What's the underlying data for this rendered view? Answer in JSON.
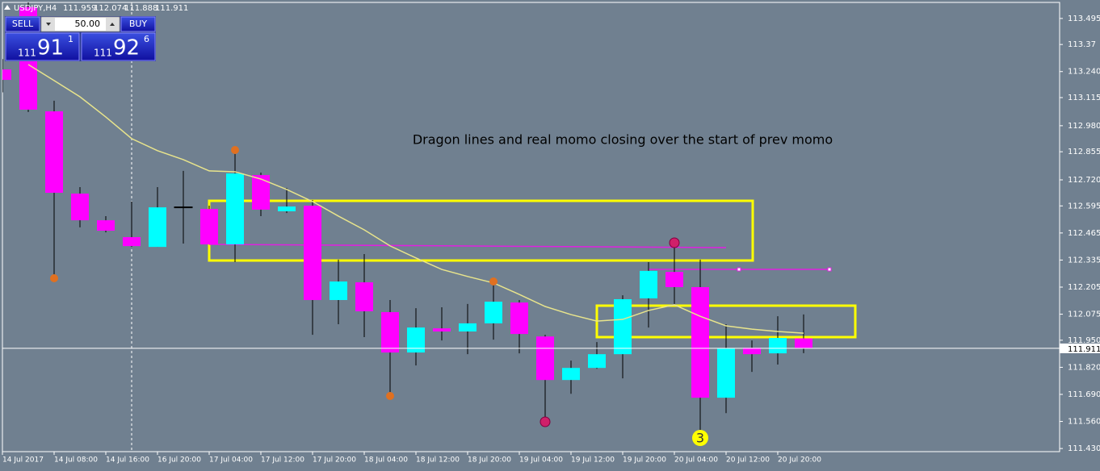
{
  "chart_data": {
    "type": "candlestick",
    "symbol": "USDJPY,H4",
    "annotations": [
      "Dragon lines and real momo closing over the start of prev momo",
      "3"
    ],
    "categories": [
      "14 Jul 2017",
      null,
      "14 Jul 08:00",
      null,
      "14 Jul 16:00",
      null,
      "16 Jul 20:00",
      null,
      "17 Jul 04:00",
      null,
      "17 Jul 12:00",
      null,
      "17 Jul 20:00",
      null,
      "18 Jul 04:00",
      null,
      "18 Jul 12:00",
      null,
      "18 Jul 20:00",
      null,
      "19 Jul 04:00",
      null,
      "19 Jul 12:00",
      null,
      "19 Jul 20:00",
      null,
      "20 Jul 04:00",
      null,
      "20 Jul 12:00",
      null,
      "20 Jul 20:00",
      null
    ],
    "open": [
      113.25,
      113.55,
      113.049,
      112.654,
      112.526,
      112.445,
      112.398,
      112.588,
      112.58,
      112.41,
      112.743,
      112.569,
      112.596,
      112.143,
      112.228,
      112.085,
      111.891,
      112.007,
      111.992,
      112.031,
      112.131,
      111.968,
      111.759,
      111.817,
      111.883,
      112.151,
      112.278,
      112.205,
      111.674,
      111.914,
      111.887,
      111.959
    ],
    "high": [
      113.3,
      113.6,
      113.1,
      112.685,
      112.546,
      112.616,
      112.685,
      112.763,
      112.596,
      112.848,
      112.755,
      112.681,
      112.623,
      112.337,
      112.364,
      112.143,
      112.104,
      112.108,
      112.124,
      112.248,
      112.143,
      111.976,
      111.852,
      111.941,
      112.166,
      112.325,
      112.422,
      112.337,
      112.027,
      111.949,
      112.065,
      112.074
    ],
    "low": [
      113.14,
      113.046,
      112.247,
      112.492,
      112.468,
      112.398,
      112.398,
      112.414,
      112.41,
      112.325,
      112.546,
      112.561,
      111.976,
      112.027,
      111.965,
      111.686,
      111.829,
      111.949,
      111.883,
      111.953,
      111.887,
      111.542,
      111.693,
      111.813,
      111.767,
      112.011,
      112.124,
      111.461,
      111.6,
      111.798,
      111.833,
      111.888
    ],
    "close": [
      113.2,
      113.057,
      112.658,
      112.526,
      112.476,
      112.402,
      112.588,
      112.59,
      112.41,
      112.751,
      112.577,
      112.592,
      112.143,
      112.232,
      112.089,
      111.891,
      112.011,
      111.992,
      112.031,
      112.135,
      111.98,
      111.759,
      111.817,
      111.883,
      112.147,
      112.283,
      112.205,
      111.674,
      111.911,
      111.883,
      111.961,
      111.911
    ],
    "ma": [
      null,
      113.274,
      113.197,
      113.119,
      113.022,
      112.918,
      112.86,
      112.817,
      112.763,
      112.759,
      112.724,
      112.674,
      112.616,
      112.546,
      112.48,
      112.403,
      112.345,
      112.29,
      112.256,
      112.225,
      112.17,
      112.112,
      112.073,
      112.042,
      112.05,
      112.093,
      112.12,
      112.065,
      112.019,
      112.003,
      111.992,
      111.984
    ],
    "up_color": "#00ffff",
    "down_color": "#ff00ff",
    "ma_color": "#e8e48c",
    "background": "#708090",
    "ylim": [
      111.415,
      113.572
    ],
    "yticks": [
      113.495,
      113.37,
      {
        "value": 113.24,
        "label": "113.240"
      },
      113.115,
      {
        "value": 112.98,
        "label": "112.980"
      },
      112.855,
      {
        "value": 112.72,
        "label": "112.720"
      },
      112.595,
      112.465,
      112.335,
      112.205,
      112.075,
      {
        "value": 111.95,
        "label": "111.950"
      },
      {
        "value": 111.82,
        "label": "111.820"
      },
      {
        "value": 111.69,
        "label": "111.690"
      },
      {
        "value": 111.56,
        "label": "111.560"
      },
      {
        "value": 111.43,
        "label": "111.430"
      }
    ]
  },
  "trade_panel": {
    "sell": "SELL",
    "lots": "50.00",
    "buy": "BUY",
    "bid": {
      "big": "111",
      "main": "91",
      "small": "1"
    },
    "ask": {
      "big": "111",
      "main": "92",
      "small": "6"
    }
  }
}
